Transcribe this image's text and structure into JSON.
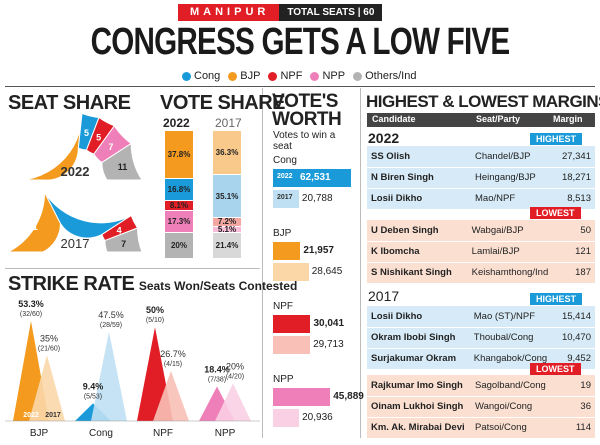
{
  "banner": {
    "state": "MANIPUR",
    "total_seats": "TOTAL SEATS | 60"
  },
  "headline": "CONGRESS GETS A LOW FIVE",
  "legend": [
    {
      "label": "Cong",
      "color": "#1a9ad9"
    },
    {
      "label": "BJP",
      "color": "#f39a1f"
    },
    {
      "label": "NPF",
      "color": "#e11e26"
    },
    {
      "label": "NPP",
      "color": "#ef7fb8"
    },
    {
      "label": "Others/Ind",
      "color": "#b3b3b3"
    }
  ],
  "seat_share": {
    "title": "SEAT SHARE",
    "y2022": {
      "year": "2022",
      "segments": [
        {
          "party": "BJP",
          "value": 32,
          "color": "#f39a1f"
        },
        {
          "party": "Cong",
          "value": 5,
          "color": "#1a9ad9"
        },
        {
          "party": "NPF",
          "value": 5,
          "color": "#e11e26"
        },
        {
          "party": "NPP",
          "value": 7,
          "color": "#ef7fb8"
        },
        {
          "party": "Others",
          "value": 11,
          "color": "#b3b3b3"
        }
      ]
    },
    "y2017": {
      "year": "2017",
      "segments": [
        {
          "party": "BJP",
          "value": 21,
          "color": "#f39a1f"
        },
        {
          "party": "Cong",
          "value": 28,
          "color": "#1a9ad9"
        },
        {
          "party": "NPF",
          "value": 4,
          "color": "#e11e26"
        },
        {
          "party": "Others",
          "value": 7,
          "color": "#b3b3b3"
        }
      ]
    }
  },
  "vote_share": {
    "title": "VOTE SHARE",
    "y2022": {
      "year": "2022",
      "segments": [
        {
          "label": "37.8%",
          "value": 37.8,
          "color": "#f39a1f"
        },
        {
          "label": "16.8%",
          "value": 16.8,
          "color": "#1a9ad9"
        },
        {
          "label": "8.1%",
          "value": 8.1,
          "color": "#e11e26"
        },
        {
          "label": "17.3%",
          "value": 17.3,
          "color": "#ef7fb8"
        },
        {
          "label": "20%",
          "value": 20,
          "color": "#b3b3b3"
        }
      ]
    },
    "y2017": {
      "year": "2017",
      "segments": [
        {
          "label": "36.3%",
          "value": 36.3,
          "color": "#f8c98a"
        },
        {
          "label": "35.1%",
          "value": 35.1,
          "color": "#a8d4ee"
        },
        {
          "label": "7.2%",
          "value": 7.2,
          "color": "#f4a6a0"
        },
        {
          "label": "5.1%",
          "value": 5.1,
          "color": "#f7bcd8"
        },
        {
          "label": "21.4%",
          "value": 21.4,
          "color": "#d8d8d8"
        }
      ]
    }
  },
  "votes_worth": {
    "title1": "VOTE'S",
    "title2": "WORTH",
    "subtitle": "Votes to win a seat",
    "groups": [
      {
        "party": "Cong",
        "y2022": "62,531",
        "v2022": 62531,
        "y2017": "20,788",
        "v2017": 20788,
        "c1": "#1a9ad9",
        "c2": "#bfe0f3"
      },
      {
        "party": "BJP",
        "y2022": "21,957",
        "v2022": 21957,
        "y2017": "28,645",
        "v2017": 28645,
        "c1": "#f39a1f",
        "c2": "#fbd7a8"
      },
      {
        "party": "NPF",
        "y2022": "30,041",
        "v2022": 30041,
        "y2017": "29,713",
        "v2017": 29713,
        "c1": "#e11e26",
        "c2": "#f8c0b6"
      },
      {
        "party": "NPP",
        "y2022": "45,889",
        "v2022": 45889,
        "y2017": "20,936",
        "v2017": 20936,
        "c1": "#ef7fb8",
        "c2": "#f9d0e4"
      }
    ],
    "tag2022": "2022",
    "tag2017": "2017"
  },
  "margins": {
    "title": "HIGHEST & LOWEST MARGINS",
    "headers": [
      "Candidate",
      "Seat/Party",
      "Margin"
    ],
    "y2022": "2022",
    "y2017": "2017",
    "highest_label": "HIGHEST",
    "lowest_label": "LOWEST",
    "h2022": [
      [
        "SS Olish",
        "Chandel/BJP",
        "27,341"
      ],
      [
        "N Biren Singh",
        "Heingang/BJP",
        "18,271"
      ],
      [
        "Losii Dikho",
        "Mao/NPF",
        "8,513"
      ]
    ],
    "l2022": [
      [
        "U Deben Singh",
        "Wabgai/BJP",
        "50"
      ],
      [
        "K Ibomcha",
        "Lamlai/BJP",
        "121"
      ],
      [
        "S Nishikant Singh",
        "Keishamthong/Ind",
        "187"
      ]
    ],
    "h2017": [
      [
        "Losii Dikho",
        "Mao (ST)/NPF",
        "15,414"
      ],
      [
        "Okram Ibobi Singh",
        "Thoubal/Cong",
        "10,470"
      ],
      [
        "Surjakumar Okram",
        "Khangabok/Cong",
        "9,452"
      ]
    ],
    "l2017": [
      [
        "Rajkumar Imo Singh",
        "Sagolband/Cong",
        "19"
      ],
      [
        "Oinam Lukhoi Singh",
        "Wangoi/Cong",
        "36"
      ],
      [
        "Km. Ak. Mirabai Devi",
        "Patsoi/Cong",
        "114"
      ]
    ]
  },
  "strike_rate": {
    "title": "STRIKE RATE",
    "subtitle": "Seats Won/Seats Contested",
    "parties": [
      {
        "name": "BJP",
        "p2022": "53.3%",
        "s2022": "(32/60)",
        "v2022": 53.3,
        "p2017": "35%",
        "s2017": "(21/60)",
        "v2017": 35,
        "c1": "#f39a1f",
        "c2": "#fbd7a8"
      },
      {
        "name": "Cong",
        "p2022": "9.4%",
        "s2022": "(5/53)",
        "v2022": 9.4,
        "p2017": "47.5%",
        "s2017": "(28/59)",
        "v2017": 47.5,
        "c1": "#1a9ad9",
        "c2": "#bfe0f3"
      },
      {
        "name": "NPF",
        "p2022": "50%",
        "s2022": "(5/10)",
        "v2022": 50,
        "p2017": "26.7%",
        "s2017": "(4/15)",
        "v2017": 26.7,
        "c1": "#e11e26",
        "c2": "#f8c0b6"
      },
      {
        "name": "NPP",
        "p2022": "18.4%",
        "s2022": "(7/38)",
        "v2022": 18.4,
        "p2017": "20%",
        "s2017": "(4/20)",
        "v2017": 20,
        "c1": "#ef7fb8",
        "c2": "#f9d0e4"
      }
    ],
    "tag2022": "2022",
    "tag2017": "2017"
  }
}
